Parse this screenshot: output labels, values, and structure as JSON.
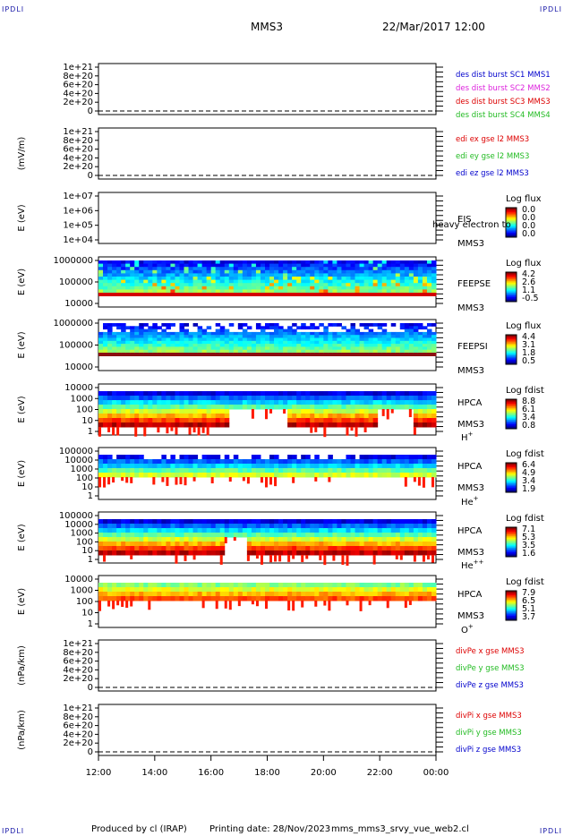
{
  "corner_mark": "IPDLI",
  "header": {
    "spacecraft": "MMS3",
    "datetime": "22/Mar/2017 12:00"
  },
  "footer": {
    "produced_by": "Produced by cl (IRAP)",
    "printing_date": "Printing date: 28/Nov/2023",
    "script_name": "mms_mms3_srvy_vue_web2.cl"
  },
  "chart_data": {
    "type": "multi-panel time series and spectrograms",
    "x_axis": {
      "start": "12:00",
      "end": "00:00",
      "tick_labels": [
        "12:00",
        "14:00",
        "16:00",
        "18:00",
        "20:00",
        "22:00",
        "00:00"
      ]
    },
    "panels": [
      {
        "id": "des",
        "kind": "line",
        "ylabel": "",
        "ytick_labels": [
          "1e+21",
          "8e+20",
          "6e+20",
          "4e+20",
          "2e+20",
          "0"
        ],
        "legend": [
          {
            "text": "des dist burst SC1 MMS1",
            "color": "#0000cc"
          },
          {
            "text": "des dist burst SC2 MMS2",
            "color": "#dd22dd"
          },
          {
            "text": "des dist burst SC3 MMS3",
            "color": "#dd0000"
          },
          {
            "text": "des dist burst SC4 MMS4",
            "color": "#22bb22"
          }
        ]
      },
      {
        "id": "edi",
        "kind": "line",
        "ylabel": "(mV/m)",
        "ytick_labels": [
          "1e+21",
          "8e+20",
          "6e+20",
          "4e+20",
          "2e+20",
          "0"
        ],
        "legend": [
          {
            "text": "edi ex gse l2 MMS3",
            "color": "#dd0000"
          },
          {
            "text": "edi ey gse l2 MMS3",
            "color": "#22bb22"
          },
          {
            "text": "edi ez gse l2 MMS3",
            "color": "#0000cc"
          }
        ]
      },
      {
        "id": "eis",
        "kind": "spectrogram",
        "ylabel": "E (eV)",
        "ytick_labels": [
          "1e+07",
          "1e+06",
          "1e+05",
          "1e+04"
        ],
        "right_labels": [
          "EIS",
          "MMS3"
        ],
        "overlay_text": "heavy electron to",
        "colorbar": {
          "title": "Log flux",
          "ticks": [
            "0.0",
            "0.0",
            "0.0",
            "0.0"
          ]
        }
      },
      {
        "id": "feepse",
        "kind": "spectrogram",
        "ylabel": "E (eV)",
        "ytick_labels": [
          "1000000",
          "100000",
          "10000"
        ],
        "right_labels": [
          "FEEPSE",
          "MMS3"
        ],
        "colorbar": {
          "title": "Log flux",
          "ticks": [
            "4.2",
            "2.6",
            "1.1",
            "-0.5"
          ]
        }
      },
      {
        "id": "feepsi",
        "kind": "spectrogram",
        "ylabel": "E (eV)",
        "ytick_labels": [
          "1000000",
          "100000",
          "10000"
        ],
        "right_labels": [
          "FEEPSI",
          "MMS3"
        ],
        "colorbar": {
          "title": "Log flux",
          "ticks": [
            "4.4",
            "3.1",
            "1.8",
            "0.5"
          ]
        }
      },
      {
        "id": "hpca_h",
        "kind": "spectrogram",
        "ylabel": "E (eV)",
        "ytick_labels": [
          "10000",
          "1000",
          "100",
          "10",
          "1"
        ],
        "right_labels": [
          "HPCA",
          "MMS3"
        ],
        "species": "H",
        "species_sup": "+",
        "colorbar": {
          "title": "Log fdist",
          "ticks": [
            "8.8",
            "6.1",
            "3.4",
            "0.8"
          ]
        }
      },
      {
        "id": "hpca_he",
        "kind": "spectrogram",
        "ylabel": "E (eV)",
        "ytick_labels": [
          "100000",
          "10000",
          "1000",
          "100",
          "10",
          "1"
        ],
        "right_labels": [
          "HPCA",
          "MMS3"
        ],
        "species": "He",
        "species_sup": "+",
        "colorbar": {
          "title": "Log fdist",
          "ticks": [
            "6.4",
            "4.9",
            "3.4",
            "1.9"
          ]
        }
      },
      {
        "id": "hpca_hepp",
        "kind": "spectrogram",
        "ylabel": "E (eV)",
        "ytick_labels": [
          "100000",
          "10000",
          "1000",
          "100",
          "10",
          "1"
        ],
        "right_labels": [
          "HPCA",
          "MMS3"
        ],
        "species": "He",
        "species_sup": "++",
        "colorbar": {
          "title": "Log fdist",
          "ticks": [
            "7.1",
            "5.3",
            "3.5",
            "1.6"
          ]
        }
      },
      {
        "id": "hpca_o",
        "kind": "spectrogram",
        "ylabel": "E (eV)",
        "ytick_labels": [
          "10000",
          "1000",
          "100",
          "10",
          "1"
        ],
        "right_labels": [
          "HPCA",
          "MMS3"
        ],
        "species": "O",
        "species_sup": "+",
        "colorbar": {
          "title": "Log fdist",
          "ticks": [
            "7.9",
            "6.5",
            "5.1",
            "3.7"
          ]
        }
      },
      {
        "id": "divpe",
        "kind": "line",
        "ylabel": "(nPa/km)",
        "ytick_labels": [
          "1e+21",
          "8e+20",
          "6e+20",
          "4e+20",
          "2e+20",
          "0"
        ],
        "legend": [
          {
            "text": "divPe x gse MMS3",
            "color": "#dd0000"
          },
          {
            "text": "divPe y gse MMS3",
            "color": "#22bb22"
          },
          {
            "text": "divPe z gse MMS3",
            "color": "#0000cc"
          }
        ]
      },
      {
        "id": "divpi",
        "kind": "line",
        "ylabel": "(nPa/km)",
        "ytick_labels": [
          "1e+21",
          "8e+20",
          "6e+20",
          "4e+20",
          "2e+20",
          "0"
        ],
        "legend": [
          {
            "text": "divPi x gse MMS3",
            "color": "#dd0000"
          },
          {
            "text": "divPi y gse MMS3",
            "color": "#22bb22"
          },
          {
            "text": "divPi z gse MMS3",
            "color": "#0000cc"
          }
        ]
      }
    ]
  }
}
